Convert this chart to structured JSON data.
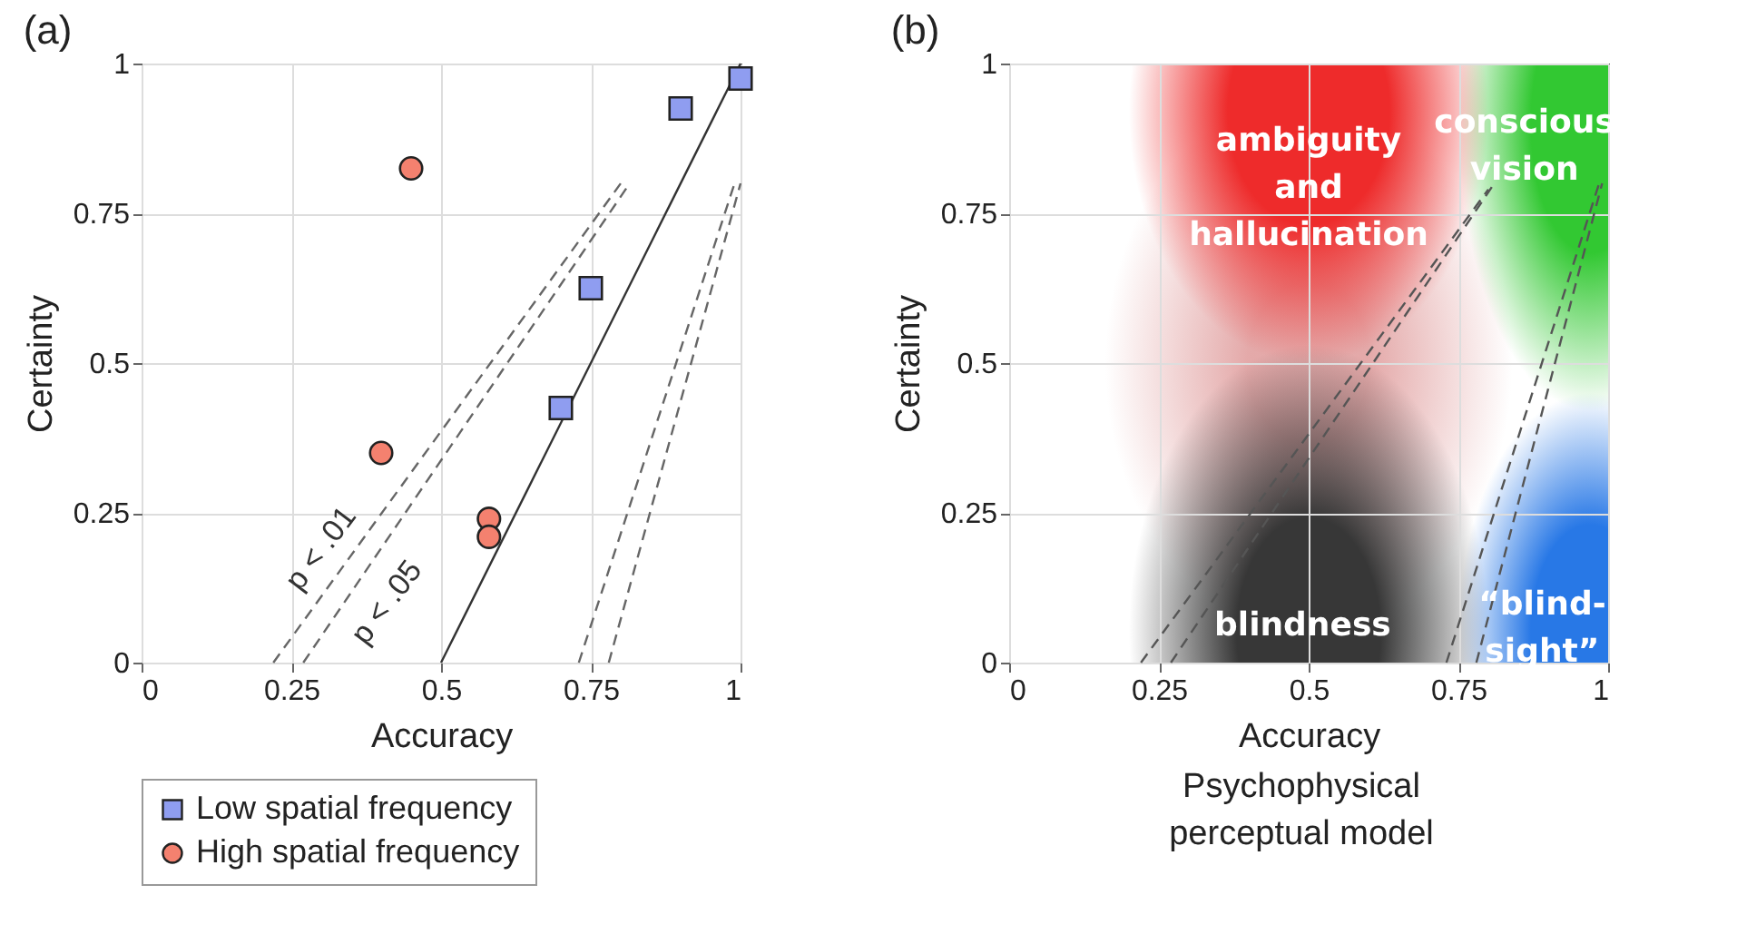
{
  "chart_data": [
    {
      "type": "scatter",
      "title": "(a)",
      "xlabel": "Accuracy",
      "ylabel": "Certainty",
      "xlim": [
        0,
        1
      ],
      "ylim": [
        0,
        1
      ],
      "xticks": [
        0,
        0.25,
        0.5,
        0.75,
        1
      ],
      "yticks": [
        0,
        0.25,
        0.5,
        0.75,
        1
      ],
      "grid": true,
      "legend": "bottom",
      "series": [
        {
          "name": "Low spatial frequency",
          "type": "scatter",
          "marker": "square",
          "color": "#8f9df0",
          "x": [
            0.7,
            0.75,
            0.9,
            1
          ],
          "values": [
            0.425,
            0.625,
            0.925,
            0.975
          ]
        },
        {
          "name": "High spatial frequency",
          "type": "scatter",
          "marker": "circle",
          "color": "#f4816f",
          "x": [
            0.4,
            0.45,
            0.58,
            0.58
          ],
          "values": [
            0.35,
            0.825,
            0.24,
            0.21
          ]
        },
        {
          "type": "line",
          "line_style": "solid",
          "color": "#333333",
          "x": [
            0.5,
            1
          ],
          "values": [
            0,
            1
          ]
        },
        {
          "type": "line",
          "line_style": "dashed",
          "color": "#666666",
          "x": [
            0.22,
            0.8
          ],
          "values": [
            0,
            0.8
          ]
        },
        {
          "type": "line",
          "line_style": "dashed",
          "color": "#666666",
          "x": [
            0.27,
            0.815
          ],
          "values": [
            0,
            0.8
          ]
        },
        {
          "type": "line",
          "line_style": "dashed",
          "color": "#666666",
          "x": [
            0.73,
            0.99
          ],
          "values": [
            0,
            0.8
          ]
        },
        {
          "type": "line",
          "line_style": "dashed",
          "color": "#666666",
          "x": [
            0.78,
            1
          ],
          "values": [
            0,
            0.8
          ]
        }
      ],
      "annotations": [
        "p < .01",
        "p < .05"
      ]
    },
    {
      "type": "line",
      "title": "(b)",
      "xlabel": "Accuracy",
      "ylabel": "Certainty",
      "xlim": [
        0,
        1
      ],
      "ylim": [
        0,
        1
      ],
      "xticks": [
        0,
        0.25,
        0.5,
        0.75,
        1
      ],
      "yticks": [
        0,
        0.25,
        0.5,
        0.75,
        1
      ],
      "grid": true,
      "series": [
        {
          "type": "line",
          "line_style": "dashed",
          "color": "#555555",
          "x": [
            0.22,
            0.8
          ],
          "values": [
            0,
            0.79
          ]
        },
        {
          "type": "line",
          "line_style": "dashed",
          "color": "#555555",
          "x": [
            0.27,
            0.81
          ],
          "values": [
            0,
            0.8
          ]
        },
        {
          "type": "line",
          "line_style": "dashed",
          "color": "#555555",
          "x": [
            0.73,
            0.985
          ],
          "values": [
            0,
            0.8
          ]
        },
        {
          "type": "line",
          "line_style": "dashed",
          "color": "#555555",
          "x": [
            0.78,
            0.99
          ],
          "values": [
            0,
            0.8
          ]
        }
      ],
      "annotations": [
        "ambiguity\nand\nhallucination",
        "conscious\nvision",
        "blindness",
        "“blind-\nsight”",
        "Psychophysical perceptual model"
      ]
    }
  ]
}
